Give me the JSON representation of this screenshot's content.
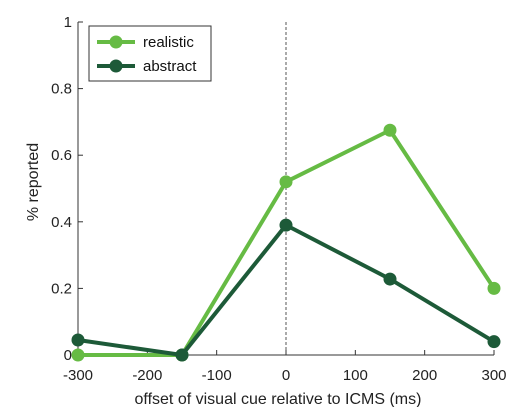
{
  "chart_data": {
    "type": "line",
    "title": "",
    "xlabel": "offset of visual cue relative to ICMS (ms)",
    "ylabel": "% reported",
    "xlim": [
      -300,
      300
    ],
    "ylim": [
      0,
      1
    ],
    "xticks": [
      -300,
      -200,
      -100,
      0,
      100,
      200,
      300
    ],
    "xtick_labels": [
      "-300",
      "-200",
      "-100",
      "0",
      "100",
      "200",
      "300"
    ],
    "yticks": [
      0,
      0.2,
      0.4,
      0.6,
      0.8,
      1
    ],
    "ytick_labels": [
      "0",
      "0.2",
      "0.4",
      "0.6",
      "0.8",
      "1"
    ],
    "grid": false,
    "legend_position": "top-left",
    "reference_line": {
      "x": 0,
      "style": "dashed"
    },
    "x": [
      -300,
      -150,
      0,
      150,
      300
    ],
    "series": [
      {
        "name": "realistic",
        "color": "#66bb44",
        "values": [
          0.0,
          0.0,
          0.52,
          0.675,
          0.2
        ]
      },
      {
        "name": "abstract",
        "color": "#1d5a38",
        "values": [
          0.045,
          0.0,
          0.39,
          0.228,
          0.04
        ]
      }
    ]
  }
}
